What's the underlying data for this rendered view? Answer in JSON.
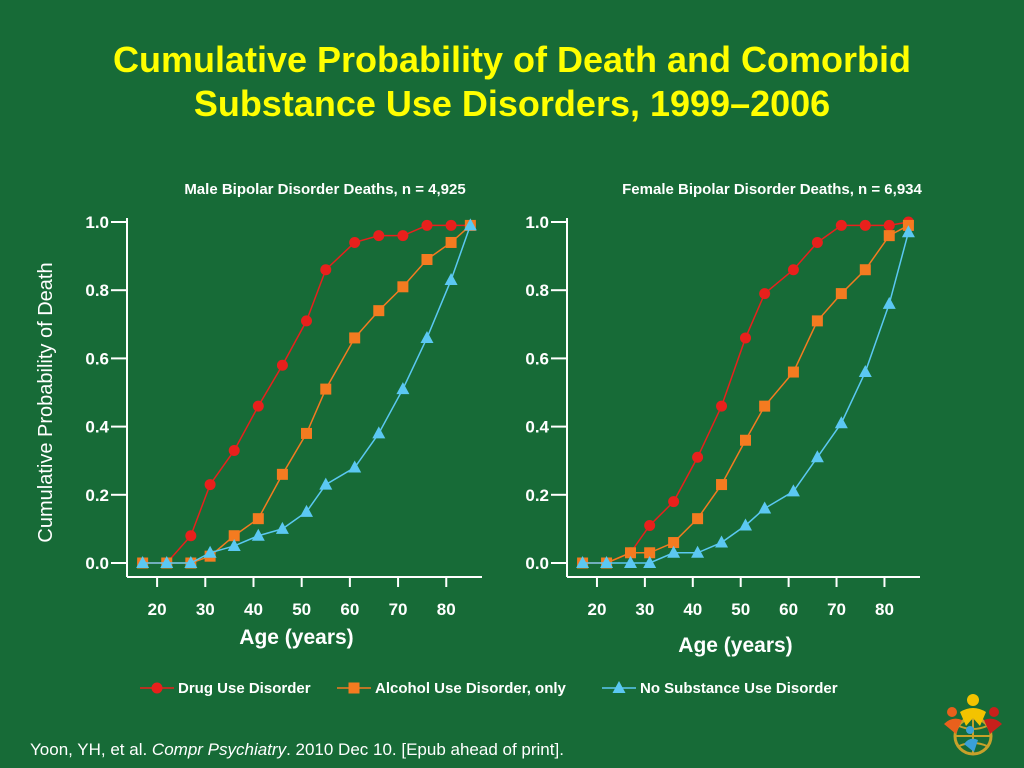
{
  "title": {
    "line1": "Cumulative Probability of Death and Comorbid",
    "line2": "Substance Use Disorders, 1999–2006"
  },
  "colors": {
    "background": "#176b37",
    "title": "#ffff00",
    "drug": "#e8201c",
    "alcohol": "#f47b20",
    "none": "#5bc8f2"
  },
  "chart_data": [
    {
      "type": "line",
      "title": "Male Bipolar Disorder Deaths, n = 4,925",
      "xlabel": "Age (years)",
      "ylabel": "Cumulative Probability of Death",
      "xlim": [
        15,
        87
      ],
      "ylim": [
        0,
        1
      ],
      "xticks": [
        20,
        30,
        40,
        50,
        60,
        70,
        80
      ],
      "yticks": [
        "0.0",
        "0.2",
        "0.4",
        "0.6",
        "0.8",
        "1.0"
      ],
      "x": [
        17,
        22,
        27,
        31,
        36,
        41,
        46,
        51,
        55,
        61,
        66,
        71,
        76,
        81,
        85
      ],
      "series": [
        {
          "name": "Drug Use Disorder",
          "marker": "circle",
          "values": [
            0.0,
            0.0,
            0.08,
            0.23,
            0.33,
            0.46,
            0.58,
            0.71,
            0.86,
            0.94,
            0.96,
            0.96,
            0.99,
            0.99,
            0.99
          ]
        },
        {
          "name": "Alcohol Use Disorder, only",
          "marker": "square",
          "values": [
            0.0,
            0.0,
            0.0,
            0.02,
            0.08,
            0.13,
            0.26,
            0.38,
            0.51,
            0.66,
            0.74,
            0.81,
            0.89,
            0.94,
            0.99
          ]
        },
        {
          "name": "No Substance Use Disorder",
          "marker": "triangle",
          "values": [
            0.0,
            0.0,
            0.0,
            0.03,
            0.05,
            0.08,
            0.1,
            0.15,
            0.23,
            0.28,
            0.38,
            0.51,
            0.66,
            0.83,
            0.99
          ]
        }
      ]
    },
    {
      "type": "line",
      "title": "Female Bipolar Disorder Deaths, n = 6,934",
      "xlabel": "Age (years)",
      "ylabel": "",
      "xlim": [
        15,
        87
      ],
      "ylim": [
        0,
        1
      ],
      "xticks": [
        20,
        30,
        40,
        50,
        60,
        70,
        80
      ],
      "yticks": [
        "0.0",
        "0.2",
        "0.4",
        "0.6",
        "0.8",
        "1.0"
      ],
      "x": [
        17,
        22,
        27,
        31,
        36,
        41,
        46,
        51,
        55,
        61,
        66,
        71,
        76,
        81,
        85
      ],
      "series": [
        {
          "name": "Drug Use Disorder",
          "marker": "circle",
          "values": [
            0.0,
            0.0,
            0.03,
            0.11,
            0.18,
            0.31,
            0.46,
            0.66,
            0.79,
            0.86,
            0.94,
            0.99,
            0.99,
            0.99,
            1.0
          ]
        },
        {
          "name": "Alcohol Use Disorder, only",
          "marker": "square",
          "values": [
            0.0,
            0.0,
            0.03,
            0.03,
            0.06,
            0.13,
            0.23,
            0.36,
            0.46,
            0.56,
            0.71,
            0.79,
            0.86,
            0.96,
            0.99
          ]
        },
        {
          "name": "No Substance Use Disorder",
          "marker": "triangle",
          "values": [
            0.0,
            0.0,
            0.0,
            0.0,
            0.03,
            0.03,
            0.06,
            0.11,
            0.16,
            0.21,
            0.31,
            0.41,
            0.56,
            0.76,
            0.97
          ]
        }
      ]
    }
  ],
  "legend": [
    {
      "label": "Drug Use Disorder"
    },
    {
      "label": "Alcohol Use Disorder, only"
    },
    {
      "label": "No Substance Use Disorder"
    }
  ],
  "citation": {
    "author": "Yoon, YH, et al. ",
    "journal": "Compr Psychiatry",
    "rest": ". 2010 Dec 10. [Epub ahead of print]."
  },
  "logo": {
    "icon": "people-globe-logo-icon"
  }
}
